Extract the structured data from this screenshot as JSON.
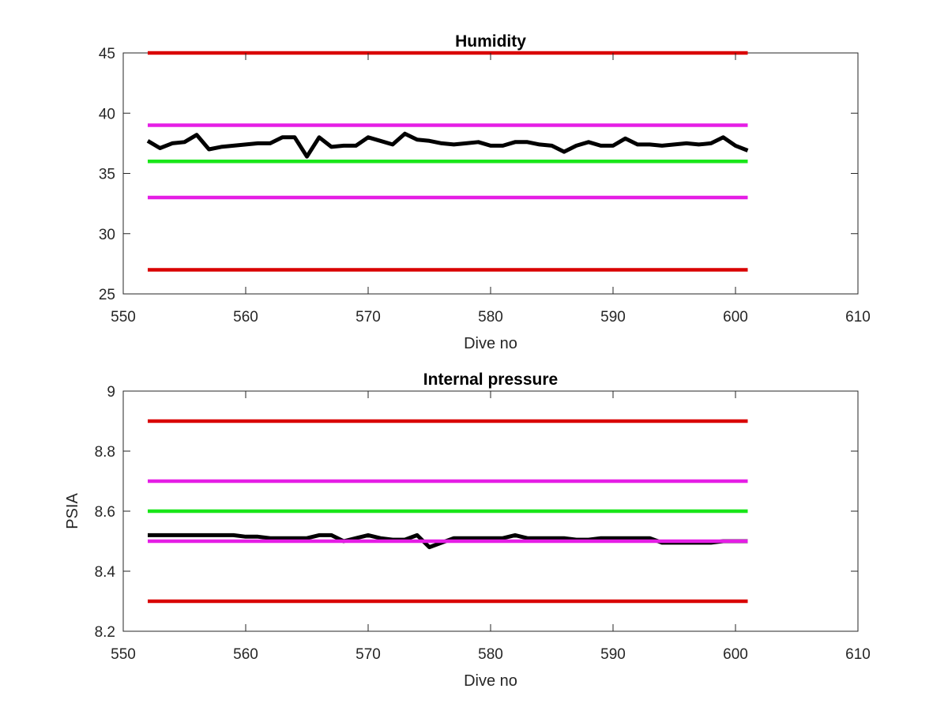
{
  "colors": {
    "limit_red": "#d90000",
    "limit_magenta": "#e51ee5",
    "target_green": "#19e619",
    "measured_black": "#000000"
  },
  "chart_data": [
    {
      "type": "line",
      "title": "Humidity",
      "xlabel": "Dive no",
      "ylabel": "",
      "xlim": [
        550,
        610
      ],
      "ylim": [
        25,
        45
      ],
      "xticks": [
        "550",
        "560",
        "570",
        "580",
        "590",
        "600",
        "610"
      ],
      "yticks": [
        "25",
        "30",
        "35",
        "40",
        "45"
      ],
      "grid": false,
      "legend": "none",
      "series": [
        {
          "color": "#d90000",
          "x": [
            552,
            601
          ],
          "y": [
            45,
            45
          ]
        },
        {
          "color": "#e51ee5",
          "x": [
            552,
            601
          ],
          "y": [
            39,
            39
          ]
        },
        {
          "color": "#19e619",
          "x": [
            552,
            601
          ],
          "y": [
            36,
            36
          ]
        },
        {
          "color": "#e51ee5",
          "x": [
            552,
            601
          ],
          "y": [
            33,
            33
          ]
        },
        {
          "color": "#d90000",
          "x": [
            552,
            601
          ],
          "y": [
            27,
            27
          ]
        },
        {
          "color": "#000000",
          "x": [
            552,
            553,
            554,
            555,
            556,
            557,
            558,
            559,
            560,
            561,
            562,
            563,
            564,
            565,
            566,
            567,
            568,
            569,
            570,
            571,
            572,
            573,
            574,
            575,
            576,
            577,
            578,
            579,
            580,
            581,
            582,
            583,
            584,
            585,
            586,
            587,
            588,
            589,
            590,
            591,
            592,
            593,
            594,
            595,
            596,
            597,
            598,
            599,
            600,
            601
          ],
          "y": [
            37.7,
            37.1,
            37.5,
            37.6,
            38.2,
            37.0,
            37.2,
            37.3,
            37.4,
            37.5,
            37.5,
            38.0,
            38.0,
            36.4,
            38.0,
            37.2,
            37.3,
            37.3,
            38.0,
            37.7,
            37.4,
            38.3,
            37.8,
            37.7,
            37.5,
            37.4,
            37.5,
            37.6,
            37.3,
            37.3,
            37.6,
            37.6,
            37.4,
            37.3,
            36.8,
            37.3,
            37.6,
            37.3,
            37.3,
            37.9,
            37.4,
            37.4,
            37.3,
            37.4,
            37.5,
            37.4,
            37.5,
            38.0,
            37.3,
            36.9
          ]
        }
      ]
    },
    {
      "type": "line",
      "title": "Internal pressure",
      "xlabel": "Dive no",
      "ylabel": "PSIA",
      "xlim": [
        550,
        610
      ],
      "ylim": [
        8.2,
        9.0
      ],
      "xticks": [
        "550",
        "560",
        "570",
        "580",
        "590",
        "600",
        "610"
      ],
      "yticks": [
        "8.2",
        "8.4",
        "8.6",
        "8.8",
        "9"
      ],
      "grid": false,
      "legend": "none",
      "series": [
        {
          "color": "#d90000",
          "x": [
            552,
            601
          ],
          "y": [
            8.9,
            8.9
          ]
        },
        {
          "color": "#e51ee5",
          "x": [
            552,
            601
          ],
          "y": [
            8.7,
            8.7
          ]
        },
        {
          "color": "#19e619",
          "x": [
            552,
            601
          ],
          "y": [
            8.6,
            8.6
          ]
        },
        {
          "color": "#000000",
          "x": [
            552,
            553,
            554,
            555,
            556,
            557,
            558,
            559,
            560,
            561,
            562,
            563,
            564,
            565,
            566,
            567,
            568,
            569,
            570,
            571,
            572,
            573,
            574,
            575,
            576,
            577,
            578,
            579,
            580,
            581,
            582,
            583,
            584,
            585,
            586,
            587,
            588,
            589,
            590,
            591,
            592,
            593,
            594,
            595,
            596,
            597,
            598,
            599,
            600,
            601
          ],
          "y": [
            8.52,
            8.52,
            8.52,
            8.52,
            8.52,
            8.52,
            8.52,
            8.52,
            8.515,
            8.515,
            8.51,
            8.51,
            8.51,
            8.51,
            8.52,
            8.52,
            8.5,
            8.51,
            8.52,
            8.51,
            8.505,
            8.505,
            8.52,
            8.48,
            8.495,
            8.51,
            8.51,
            8.51,
            8.51,
            8.51,
            8.52,
            8.51,
            8.51,
            8.51,
            8.51,
            8.505,
            8.505,
            8.51,
            8.51,
            8.51,
            8.51,
            8.51,
            8.495,
            8.495,
            8.495,
            8.495,
            8.495,
            8.5,
            8.5,
            8.5
          ]
        },
        {
          "color": "#e51ee5",
          "x": [
            552,
            601
          ],
          "y": [
            8.5,
            8.5
          ]
        },
        {
          "color": "#d90000",
          "x": [
            552,
            601
          ],
          "y": [
            8.3,
            8.3
          ]
        }
      ]
    }
  ]
}
